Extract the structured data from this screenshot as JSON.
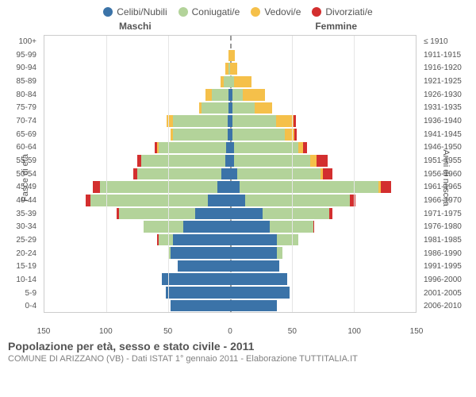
{
  "legend": [
    {
      "label": "Celibi/Nubili",
      "color": "#3b73a8"
    },
    {
      "label": "Coniugati/e",
      "color": "#b3d39a"
    },
    {
      "label": "Vedovi/e",
      "color": "#f5c04a"
    },
    {
      "label": "Divorziati/e",
      "color": "#d32f2f"
    }
  ],
  "gender_labels": {
    "left": "Maschi",
    "right": "Femmine"
  },
  "y_left_title": "Fasce di età",
  "y_right_title": "Anni di nascita",
  "x_max": 150,
  "x_ticks": [
    150,
    100,
    50,
    0,
    50,
    100,
    150
  ],
  "age_groups": [
    "100+",
    "95-99",
    "90-94",
    "85-89",
    "80-84",
    "75-79",
    "70-74",
    "65-69",
    "60-64",
    "55-59",
    "50-54",
    "45-49",
    "40-44",
    "35-39",
    "30-34",
    "25-29",
    "20-24",
    "15-19",
    "10-14",
    "5-9",
    "0-4"
  ],
  "birth_years": [
    "≤ 1910",
    "1911-1915",
    "1916-1920",
    "1921-1925",
    "1926-1930",
    "1931-1935",
    "1936-1940",
    "1941-1945",
    "1946-1950",
    "1951-1955",
    "1956-1960",
    "1961-1965",
    "1966-1970",
    "1971-1975",
    "1976-1980",
    "1981-1985",
    "1986-1990",
    "1991-1995",
    "1996-2000",
    "2001-2005",
    "2006-2010"
  ],
  "bars": [
    {
      "m": [
        0,
        0,
        0,
        0
      ],
      "f": [
        0,
        0,
        0,
        0
      ]
    },
    {
      "m": [
        0,
        0,
        1,
        0
      ],
      "f": [
        0,
        0,
        4,
        0
      ]
    },
    {
      "m": [
        0,
        1,
        3,
        0
      ],
      "f": [
        0,
        0,
        6,
        0
      ]
    },
    {
      "m": [
        0,
        5,
        3,
        0
      ],
      "f": [
        0,
        3,
        14,
        0
      ]
    },
    {
      "m": [
        1,
        14,
        5,
        0
      ],
      "f": [
        2,
        8,
        18,
        0
      ]
    },
    {
      "m": [
        1,
        22,
        2,
        0
      ],
      "f": [
        2,
        18,
        14,
        0
      ]
    },
    {
      "m": [
        2,
        44,
        5,
        0
      ],
      "f": [
        2,
        35,
        14,
        2
      ]
    },
    {
      "m": [
        2,
        44,
        2,
        0
      ],
      "f": [
        2,
        42,
        8,
        2
      ]
    },
    {
      "m": [
        3,
        55,
        1,
        2
      ],
      "f": [
        3,
        52,
        4,
        3
      ]
    },
    {
      "m": [
        4,
        68,
        0,
        3
      ],
      "f": [
        3,
        62,
        5,
        9
      ]
    },
    {
      "m": [
        7,
        68,
        0,
        3
      ],
      "f": [
        6,
        67,
        2,
        8
      ]
    },
    {
      "m": [
        10,
        95,
        0,
        6
      ],
      "f": [
        8,
        112,
        2,
        8
      ]
    },
    {
      "m": [
        18,
        95,
        0,
        4
      ],
      "f": [
        12,
        85,
        0,
        4
      ]
    },
    {
      "m": [
        28,
        62,
        0,
        2
      ],
      "f": [
        26,
        54,
        0,
        3
      ]
    },
    {
      "m": [
        38,
        32,
        0,
        0
      ],
      "f": [
        32,
        35,
        0,
        1
      ]
    },
    {
      "m": [
        46,
        12,
        0,
        1
      ],
      "f": [
        38,
        17,
        0,
        0
      ]
    },
    {
      "m": [
        48,
        2,
        0,
        0
      ],
      "f": [
        38,
        4,
        0,
        0
      ]
    },
    {
      "m": [
        42,
        0,
        0,
        0
      ],
      "f": [
        40,
        0,
        0,
        0
      ]
    },
    {
      "m": [
        55,
        0,
        0,
        0
      ],
      "f": [
        46,
        0,
        0,
        0
      ]
    },
    {
      "m": [
        52,
        0,
        0,
        0
      ],
      "f": [
        48,
        0,
        0,
        0
      ]
    },
    {
      "m": [
        48,
        0,
        0,
        0
      ],
      "f": [
        38,
        0,
        0,
        0
      ]
    }
  ],
  "colors": {
    "celibi": "#3b73a8",
    "coniugati": "#b3d39a",
    "vedovi": "#f5c04a",
    "divorziati": "#d32f2f",
    "grid": "#e5e5e5",
    "border": "#cccccc",
    "text": "#545454"
  },
  "title": "Popolazione per età, sesso e stato civile - 2011",
  "subtitle": "COMUNE DI ARIZZANO (VB) - Dati ISTAT 1° gennaio 2011 - Elaborazione TUTTITALIA.IT"
}
